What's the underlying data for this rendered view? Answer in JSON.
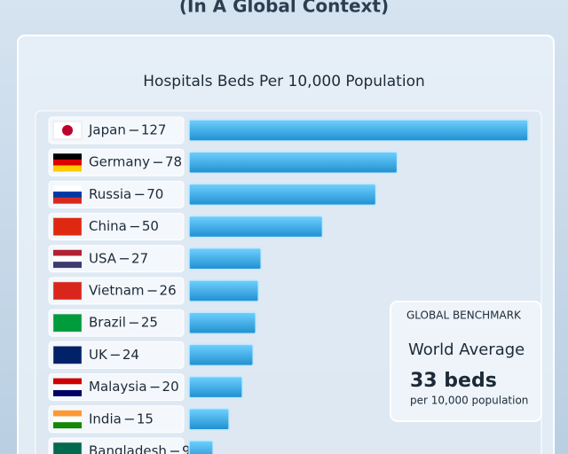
{
  "chart_data": {
    "type": "bar",
    "orientation": "horizontal",
    "subtitle": "(In A Global Context)",
    "title": "Hospitals Beds Per 10,000 Population",
    "categories": [
      "Japan",
      "Germany",
      "Russia",
      "China",
      "USA",
      "Vietnam",
      "Brazil",
      "UK",
      "Malaysia",
      "India",
      "Bangladesh"
    ],
    "values": [
      127,
      78,
      70,
      50,
      27,
      26,
      25,
      24,
      20,
      15,
      9
    ],
    "color": "#2ba3e0",
    "benchmark": {
      "heading": "GLOBAL BENCHMARK",
      "label": "World Average",
      "value_text": "33 beds",
      "unit_text": "per 10,000 population"
    }
  }
}
